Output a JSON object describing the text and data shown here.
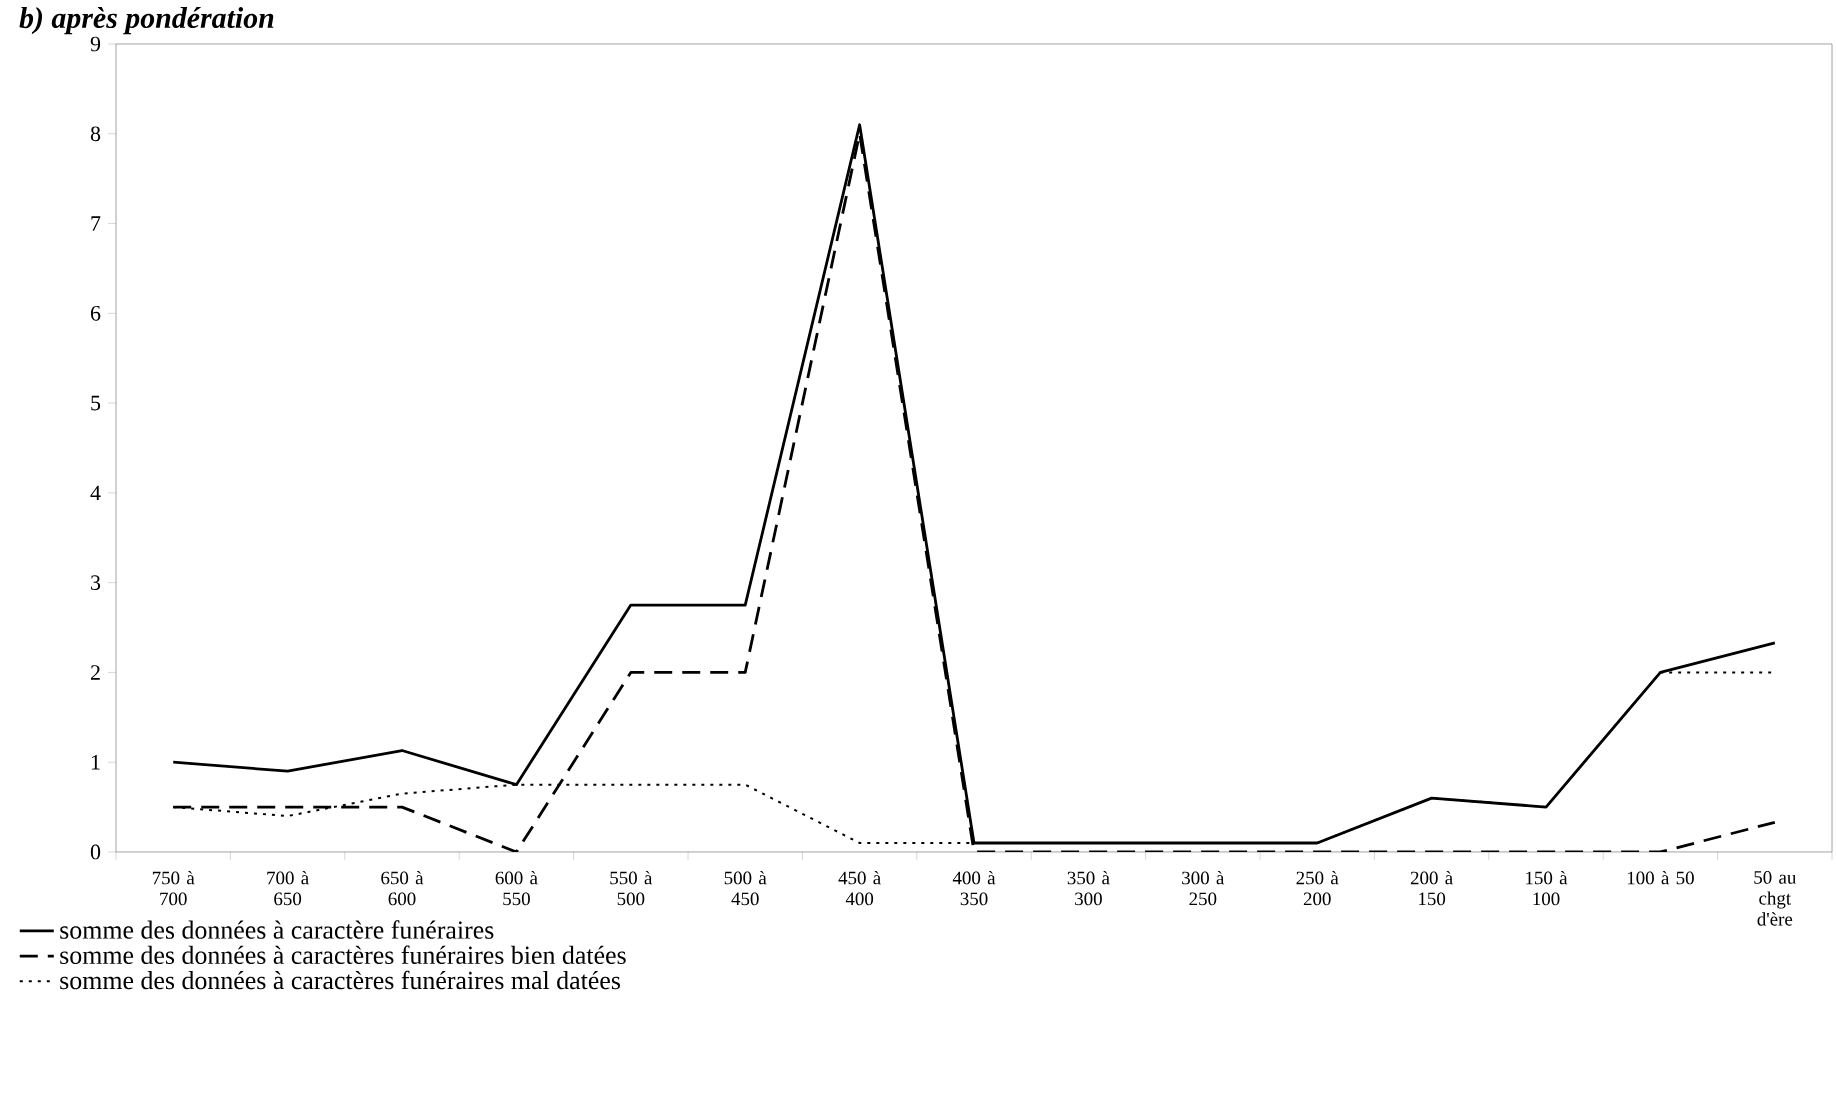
{
  "chart_data": {
    "type": "line",
    "title": "b) après pondération",
    "categories": [
      "750 à 700",
      "700 à 650",
      "650 à 600",
      "600 à 550",
      "550 à 500",
      "500 à 450",
      "450 à 400",
      "400 à 350",
      "350 à 300",
      "300 à 250",
      "250 à 200",
      "200 à 150",
      "150 à 100",
      "100 à 50",
      "50 au chgt d'ère"
    ],
    "series": [
      {
        "name": "somme des données à caractère funéraires",
        "color": "#000000",
        "line_style": "solid",
        "values": [
          1.0,
          0.9,
          1.13,
          0.75,
          2.75,
          2.75,
          8.1,
          0.1,
          0.1,
          0.1,
          0.1,
          0.6,
          0.5,
          2.0,
          2.33
        ]
      },
      {
        "name": "somme des données à caractères funéraires bien datées",
        "color": "#000000",
        "line_style": "dashed",
        "values": [
          0.5,
          0.5,
          0.5,
          0.0,
          2.0,
          2.0,
          8.0,
          0.0,
          0.0,
          0.0,
          0.0,
          0.0,
          0.0,
          0.0,
          0.33
        ]
      },
      {
        "name": "somme des données à caractères funéraires mal datées",
        "color": "#000000",
        "line_style": "dotted",
        "values": [
          0.5,
          0.4,
          0.65,
          0.75,
          0.75,
          0.75,
          0.1,
          0.1,
          0.1,
          0.1,
          0.1,
          0.6,
          0.5,
          2.0,
          2.0
        ]
      }
    ],
    "ylim": [
      0,
      9
    ],
    "yticks": [
      0,
      1,
      2,
      3,
      4,
      5,
      6,
      7,
      8,
      9
    ],
    "grid": false,
    "legend": "bottom",
    "marker": "none"
  }
}
